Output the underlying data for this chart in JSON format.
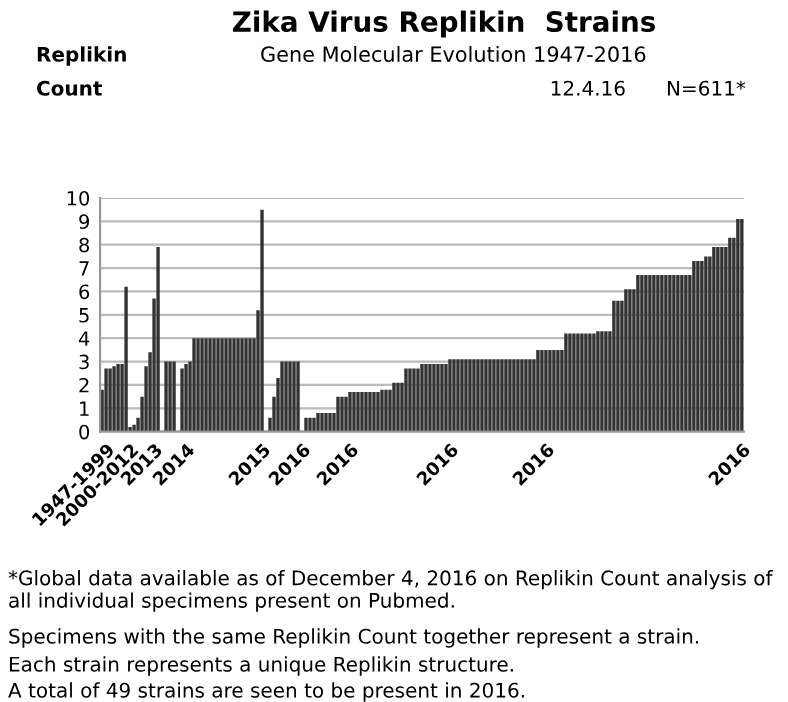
{
  "chart_data": {
    "type": "bar",
    "title": "Zika Virus Replikin  Strains",
    "subtitle": "Gene Molecular Evolution 1947-2016",
    "annotations": [
      "Replikin",
      "Count",
      "12.4.16",
      "N=611*",
      "*Global data available as of December 4, 2016 on Replikin Count analysis of all individual specimens present on Pubmed.",
      "Specimens with the same Replikin Count together represent a strain.",
      "Each strain represents a unique Replikin structure.",
      "A total of 49 strains are seen to be present in 2016."
    ],
    "categories": [
      null,
      "1947-1999",
      null,
      null,
      null,
      null,
      null,
      "2000-2012",
      null,
      null,
      null,
      null,
      null,
      "2013",
      null,
      null,
      null,
      null,
      null,
      null,
      null,
      "2014",
      null,
      null,
      null,
      null,
      null,
      null,
      null,
      null,
      null,
      null,
      null,
      null,
      null,
      null,
      null,
      null,
      null,
      null,
      "2015",
      null,
      null,
      null,
      null,
      null,
      null,
      null,
      null,
      null,
      "2016",
      null,
      null,
      null,
      null,
      null,
      null,
      null,
      null,
      null,
      null,
      null,
      "2016",
      null,
      null,
      null,
      null,
      null,
      null,
      null,
      null,
      null,
      null,
      null,
      null,
      null,
      null,
      null,
      null,
      null,
      null,
      null,
      null,
      null,
      null,
      null,
      null,
      "2016",
      null,
      null,
      null,
      null,
      null,
      null,
      null,
      null,
      null,
      null,
      null,
      null,
      null,
      null,
      null,
      null,
      null,
      null,
      null,
      null,
      null,
      null,
      null,
      "2016",
      null,
      null,
      null,
      null,
      null,
      null,
      null,
      null,
      null,
      null,
      null,
      null,
      null,
      null,
      null,
      null,
      null,
      null,
      null,
      null,
      null,
      null,
      null,
      null,
      null,
      null,
      null,
      null,
      null,
      null,
      null,
      null,
      null,
      null,
      null,
      null,
      null,
      null,
      null,
      null,
      null,
      null,
      null,
      null,
      null,
      null,
      null,
      null,
      "2016"
    ],
    "values": [
      1.8,
      2.7,
      2.7,
      2.8,
      2.9,
      2.9,
      6.2,
      0.2,
      0.3,
      0.6,
      1.5,
      2.8,
      3.4,
      5.7,
      7.9,
      0,
      3.0,
      3.0,
      3.0,
      0,
      2.7,
      2.9,
      3.0,
      4.0,
      4.0,
      4.0,
      4.0,
      4.0,
      4.0,
      4.0,
      4.0,
      4.0,
      4.0,
      4.0,
      4.0,
      4.0,
      4.0,
      4.0,
      4.0,
      5.2,
      9.5,
      0,
      0.6,
      1.5,
      2.3,
      3.0,
      3.0,
      3.0,
      3.0,
      3.0,
      0,
      0.6,
      0.6,
      0.6,
      0.8,
      0.8,
      0.8,
      0.8,
      0.8,
      1.5,
      1.5,
      1.5,
      1.7,
      1.7,
      1.7,
      1.7,
      1.7,
      1.7,
      1.7,
      1.7,
      1.8,
      1.8,
      1.8,
      2.1,
      2.1,
      2.1,
      2.7,
      2.7,
      2.7,
      2.7,
      2.9,
      2.9,
      2.9,
      2.9,
      2.9,
      2.9,
      2.9,
      3.1,
      3.1,
      3.1,
      3.1,
      3.1,
      3.1,
      3.1,
      3.1,
      3.1,
      3.1,
      3.1,
      3.1,
      3.1,
      3.1,
      3.1,
      3.1,
      3.1,
      3.1,
      3.1,
      3.1,
      3.1,
      3.1,
      3.5,
      3.5,
      3.5,
      3.5,
      3.5,
      3.5,
      3.5,
      4.2,
      4.2,
      4.2,
      4.2,
      4.2,
      4.2,
      4.2,
      4.2,
      4.3,
      4.3,
      4.3,
      4.3,
      5.6,
      5.6,
      5.6,
      6.1,
      6.1,
      6.1,
      6.7,
      6.7,
      6.7,
      6.7,
      6.7,
      6.7,
      6.7,
      6.7,
      6.7,
      6.7,
      6.7,
      6.7,
      6.7,
      6.7,
      7.3,
      7.3,
      7.3,
      7.5,
      7.5,
      7.9,
      7.9,
      7.9,
      7.9,
      8.3,
      8.3,
      9.1,
      9.1
    ],
    "color": "#333333",
    "ylim": [
      0,
      10
    ],
    "yticks": [
      0,
      1,
      2,
      3,
      4,
      5,
      6,
      7,
      8,
      9,
      10
    ],
    "grid": "y"
  }
}
